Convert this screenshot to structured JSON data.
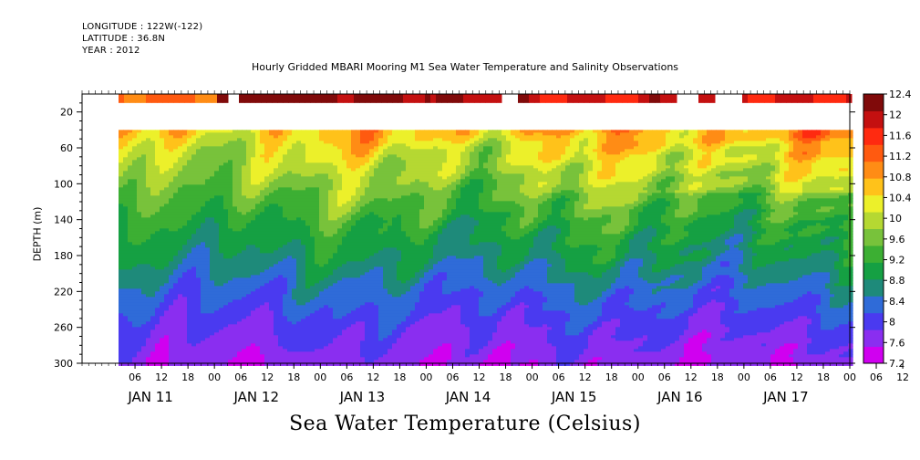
{
  "header": {
    "longitude": "LONGITUDE : 122W(-122)",
    "latitude": "LATITUDE : 36.8N",
    "year": "YEAR : 2012"
  },
  "plot_title": "Hourly Gridded MBARI Mooring M1 Sea Water Temperature and Salinity Observations",
  "main_title": "Sea Water Temperature (Celsius)",
  "colors": {
    "scale": [
      "#d000f0",
      "#8a2ef0",
      "#4a3af0",
      "#2f6bd8",
      "#1e8a7a",
      "#15a043",
      "#3caf33",
      "#78c23b",
      "#b5d832",
      "#ecf02a",
      "#ffc21a",
      "#ff8c15",
      "#ff5a10",
      "#ff2a10",
      "#c41010",
      "#800a0a"
    ]
  },
  "chart_data": {
    "type": "heatmap",
    "title": "Sea Water Temperature (Celsius)",
    "xlabel": "",
    "ylabel": "DEPTH (m)",
    "depth_range": [
      0,
      300
    ],
    "depth_ticks": [
      20,
      60,
      100,
      140,
      180,
      220,
      260,
      300
    ],
    "time_range_hours": [
      "2012-01-10T18:00",
      "2012-01-18T00:00"
    ],
    "data_start": "2012-01-11T00:00",
    "hour_ticks": [
      "06",
      "12",
      "18",
      "00",
      "06",
      "12",
      "18",
      "00",
      "06",
      "12",
      "18",
      "00",
      "06",
      "12",
      "18",
      "00",
      "06",
      "12",
      "18",
      "00",
      "06",
      "12",
      "18",
      "00",
      "06",
      "12",
      "18",
      "00",
      "06",
      "12",
      "18",
      "00"
    ],
    "day_labels": [
      "JAN 11",
      "JAN 12",
      "JAN 13",
      "JAN 14",
      "JAN 15",
      "JAN 16",
      "JAN 17"
    ],
    "colorbar_levels": [
      7.2,
      7.4,
      7.6,
      7.8,
      8.0,
      8.2,
      8.4,
      8.6,
      8.8,
      9.0,
      9.2,
      9.4,
      9.6,
      9.8,
      10.0,
      10.2,
      10.4,
      10.6,
      10.8,
      11.0,
      11.2,
      11.4,
      11.6,
      11.8,
      12.0,
      12.2,
      12.4
    ],
    "colorbar_labels": [
      "12.4",
      "12",
      "11.6",
      "11.2",
      "10.8",
      "10.4",
      "10",
      "9.6",
      "9.2",
      "8.8",
      "8.4",
      "8",
      "7.6",
      "7.2"
    ],
    "surface_temperature_by_day": {
      "JAN 11": 11.2,
      "JAN 12": 12.3,
      "JAN 13": 12.2,
      "JAN 14": 12.0,
      "JAN 15": 11.8,
      "JAN 16": 11.9,
      "JAN 17": 11.8
    },
    "typical_profile": [
      {
        "depth": 40,
        "temp": 10.6
      },
      {
        "depth": 60,
        "temp": 10.2
      },
      {
        "depth": 100,
        "temp": 9.7
      },
      {
        "depth": 140,
        "temp": 9.2
      },
      {
        "depth": 180,
        "temp": 8.8
      },
      {
        "depth": 220,
        "temp": 8.3
      },
      {
        "depth": 260,
        "temp": 7.9
      },
      {
        "depth": 300,
        "temp": 7.6
      }
    ]
  }
}
